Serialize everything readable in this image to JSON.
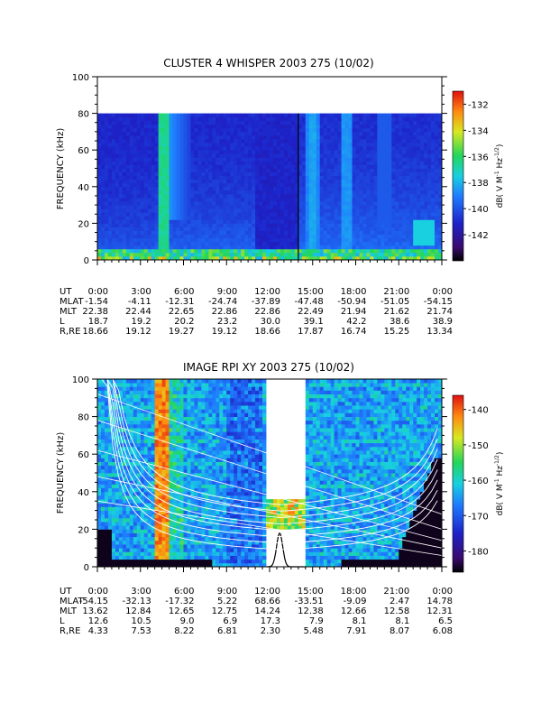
{
  "chart_data": [
    {
      "type": "heatmap",
      "title": "CLUSTER 4 WHISPER 2003 275 (10/02)",
      "ylabel": "FREQUENCY (kHz)",
      "ylim": [
        0,
        100
      ],
      "yticks": [
        "0",
        "20",
        "40",
        "60",
        "80",
        "100"
      ],
      "data_max_freq": 80,
      "xlim": [
        0,
        24
      ],
      "xticks": [
        "0:00",
        "3:00",
        "6:00",
        "9:00",
        "12:00",
        "15:00",
        "18:00",
        "21:00",
        "0:00"
      ],
      "colorbar": {
        "label": "dB( V M⁻¹ Hz⁻¹ᐟ²)",
        "label_parts": [
          "dB( V M",
          "-1",
          " Hz",
          "-1/2",
          ")"
        ],
        "range": [
          -144,
          -131
        ],
        "ticks": [
          "-132",
          "-134",
          "-136",
          "-138",
          "-140",
          "-142"
        ],
        "tick_values": [
          -132,
          -134,
          -136,
          -138,
          -140,
          -142
        ]
      },
      "features": [
        {
          "desc": "intense emission band",
          "t_start": 4.2,
          "t_end": 5.0,
          "f_max": 80
        },
        {
          "desc": "emission band",
          "t_start": 14.7,
          "t_end": 15.3,
          "f_max": 80
        },
        {
          "desc": "emission band",
          "t_start": 17.1,
          "t_end": 17.5,
          "f_max": 80
        },
        {
          "desc": "data gap line",
          "t": 14.0
        }
      ],
      "ephemeris": {
        "rows": [
          {
            "label": "UT",
            "values": [
              "0:00",
              "3:00",
              "6:00",
              "9:00",
              "12:00",
              "15:00",
              "18:00",
              "21:00",
              "0:00"
            ]
          },
          {
            "label": "MLAT",
            "values": [
              "-1.54",
              "-4.11",
              "-12.31",
              "-24.74",
              "-37.89",
              "-47.48",
              "-50.94",
              "-51.05",
              "-54.15"
            ]
          },
          {
            "label": "MLT",
            "values": [
              "22.38",
              "22.44",
              "22.65",
              "22.86",
              "22.86",
              "22.49",
              "21.94",
              "21.62",
              "21.74"
            ]
          },
          {
            "label": "L",
            "values": [
              "18.7",
              "19.2",
              "20.2",
              "23.2",
              "30.0",
              "39.1",
              "42.2",
              "38.6",
              "38.9"
            ]
          },
          {
            "label": "R,RE",
            "values": [
              "18.66",
              "19.12",
              "19.27",
              "19.12",
              "18.66",
              "17.87",
              "16.74",
              "15.25",
              "13.34"
            ]
          }
        ]
      }
    },
    {
      "type": "heatmap",
      "title": "IMAGE RPI XY 2003 275 (10/02)",
      "ylabel": "FREQUENCY (kHz)",
      "ylim": [
        0,
        100
      ],
      "yticks": [
        "0",
        "20",
        "40",
        "60",
        "80",
        "100"
      ],
      "xlim": [
        0,
        24
      ],
      "xticks": [
        "0:00",
        "3:00",
        "6:00",
        "9:00",
        "12:00",
        "15:00",
        "18:00",
        "21:00",
        "0:00"
      ],
      "colorbar": {
        "label": "dB( V M⁻¹ Hz⁻¹ᐟ²)",
        "label_parts": [
          "dB( V M",
          "-1",
          " Hz",
          "-1/2",
          ")"
        ],
        "range": [
          -186,
          -136
        ],
        "ticks": [
          "-140",
          "-150",
          "-160",
          "-170",
          "-180"
        ],
        "tick_values": [
          -140,
          -150,
          -160,
          -170,
          -180
        ]
      },
      "features": [
        {
          "desc": "intense emission band",
          "t_start": 4.0,
          "t_end": 5.0,
          "f_max": 100
        },
        {
          "desc": "data gap",
          "t_start": 11.8,
          "t_end": 14.5,
          "f_min": 35,
          "f_max": 100
        },
        {
          "desc": "data gap",
          "t_start": 11.8,
          "t_end": 14.5,
          "f_min": 0,
          "f_max": 20
        }
      ],
      "ephemeris": {
        "rows": [
          {
            "label": "UT",
            "values": [
              "0:00",
              "3:00",
              "6:00",
              "9:00",
              "12:00",
              "15:00",
              "18:00",
              "21:00",
              "0:00"
            ]
          },
          {
            "label": "MLAT",
            "values": [
              "-54.15",
              "-32.13",
              "-17.32",
              "5.22",
              "68.66",
              "-33.51",
              "-9.09",
              "2.47",
              "14.78"
            ]
          },
          {
            "label": "MLT",
            "values": [
              "13.62",
              "12.84",
              "12.65",
              "12.75",
              "14.24",
              "12.38",
              "12.66",
              "12.58",
              "12.31"
            ]
          },
          {
            "label": "L",
            "values": [
              "12.6",
              "10.5",
              "9.0",
              "6.9",
              "17.3",
              "7.9",
              "8.1",
              "8.1",
              "6.5"
            ]
          },
          {
            "label": "R,RE",
            "values": [
              "4.33",
              "7.53",
              "8.22",
              "6.81",
              "2.30",
              "5.48",
              "7.91",
              "8.07",
              "6.08"
            ]
          }
        ]
      }
    }
  ]
}
